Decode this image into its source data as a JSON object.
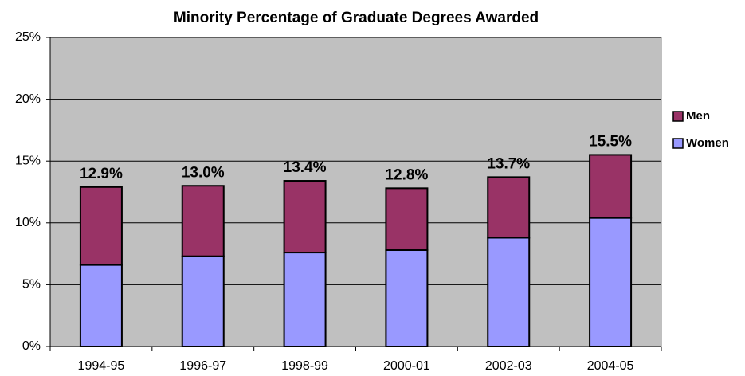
{
  "chart_data": {
    "type": "stacked_bar",
    "title": "Minority Percentage of Graduate Degrees Awarded",
    "categories": [
      "1994-95",
      "1996-97",
      "1998-99",
      "2000-01",
      "2002-03",
      "2004-05"
    ],
    "series": [
      {
        "name": "Women",
        "color": "#9999ff",
        "values": [
          6.6,
          7.3,
          7.6,
          7.8,
          8.8,
          10.4
        ]
      },
      {
        "name": "Men",
        "color": "#993366",
        "values": [
          6.3,
          5.7,
          5.8,
          5.0,
          4.9,
          5.1
        ]
      }
    ],
    "totals": [
      12.9,
      13.0,
      13.4,
      12.8,
      13.7,
      15.5
    ],
    "total_labels": [
      "12.9%",
      "13.0%",
      "13.4%",
      "12.8%",
      "13.7%",
      "15.5%"
    ],
    "ylim": [
      0,
      25
    ],
    "yticks": [
      {
        "value": 0,
        "label": "0%"
      },
      {
        "value": 5,
        "label": "5%"
      },
      {
        "value": 10,
        "label": "10%"
      },
      {
        "value": 15,
        "label": "15%"
      },
      {
        "value": 20,
        "label": "20%"
      },
      {
        "value": 25,
        "label": "25%"
      }
    ],
    "grid": true,
    "legend": "right"
  }
}
